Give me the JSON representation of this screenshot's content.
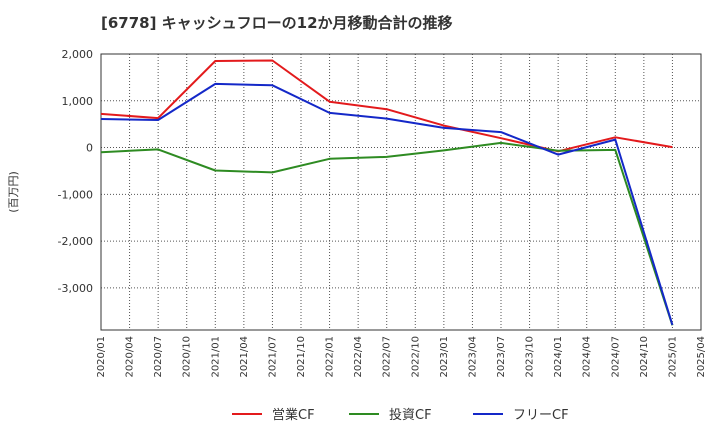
{
  "chart_data": {
    "type": "line",
    "title": "[6778]  キャッシュフローの12か月移動合計の推移",
    "ylabel": "(百万円)",
    "xlabel": "",
    "ylim": [
      -3900,
      2000
    ],
    "yticks": [
      2000,
      1000,
      0,
      -1000,
      -2000,
      -3000
    ],
    "ytick_labels": [
      "2,000",
      "1,000",
      "0",
      "-1,000",
      "-2,000",
      "-3,000"
    ],
    "x": [
      "2020/01",
      "2020/04",
      "2020/07",
      "2020/10",
      "2021/01",
      "2021/04",
      "2021/07",
      "2021/10",
      "2022/01",
      "2022/04",
      "2022/07",
      "2022/10",
      "2023/01",
      "2023/04",
      "2023/07",
      "2023/10",
      "2024/01",
      "2024/04",
      "2024/07",
      "2024/10",
      "2025/01",
      "2025/04"
    ],
    "series": [
      {
        "name": "営業CF",
        "color": "#e31a1c",
        "points": [
          [
            "2020/01",
            720
          ],
          [
            "2020/07",
            630
          ],
          [
            "2021/01",
            1850
          ],
          [
            "2021/07",
            1860
          ],
          [
            "2022/01",
            980
          ],
          [
            "2022/07",
            820
          ],
          [
            "2023/01",
            470
          ],
          [
            "2023/07",
            200
          ],
          [
            "2024/01",
            -80
          ],
          [
            "2024/07",
            220
          ],
          [
            "2025/01",
            10
          ]
        ]
      },
      {
        "name": "投資CF",
        "color": "#2e8b22",
        "points": [
          [
            "2020/01",
            -100
          ],
          [
            "2020/07",
            -40
          ],
          [
            "2021/01",
            -490
          ],
          [
            "2021/07",
            -530
          ],
          [
            "2022/01",
            -240
          ],
          [
            "2022/07",
            -200
          ],
          [
            "2023/01",
            -60
          ],
          [
            "2023/07",
            100
          ],
          [
            "2024/01",
            -70
          ],
          [
            "2024/07",
            -50
          ],
          [
            "2025/01",
            -3800
          ]
        ]
      },
      {
        "name": "フリーCF",
        "color": "#1428c8",
        "points": [
          [
            "2020/01",
            610
          ],
          [
            "2020/07",
            590
          ],
          [
            "2021/01",
            1360
          ],
          [
            "2021/07",
            1330
          ],
          [
            "2022/01",
            740
          ],
          [
            "2022/07",
            620
          ],
          [
            "2023/01",
            420
          ],
          [
            "2023/07",
            330
          ],
          [
            "2024/01",
            -150
          ],
          [
            "2024/07",
            170
          ],
          [
            "2025/01",
            -3790
          ]
        ]
      }
    ],
    "legend": [
      "営業CF",
      "投資CF",
      "フリーCF"
    ],
    "legend_position": "bottom-center",
    "grid": true
  }
}
